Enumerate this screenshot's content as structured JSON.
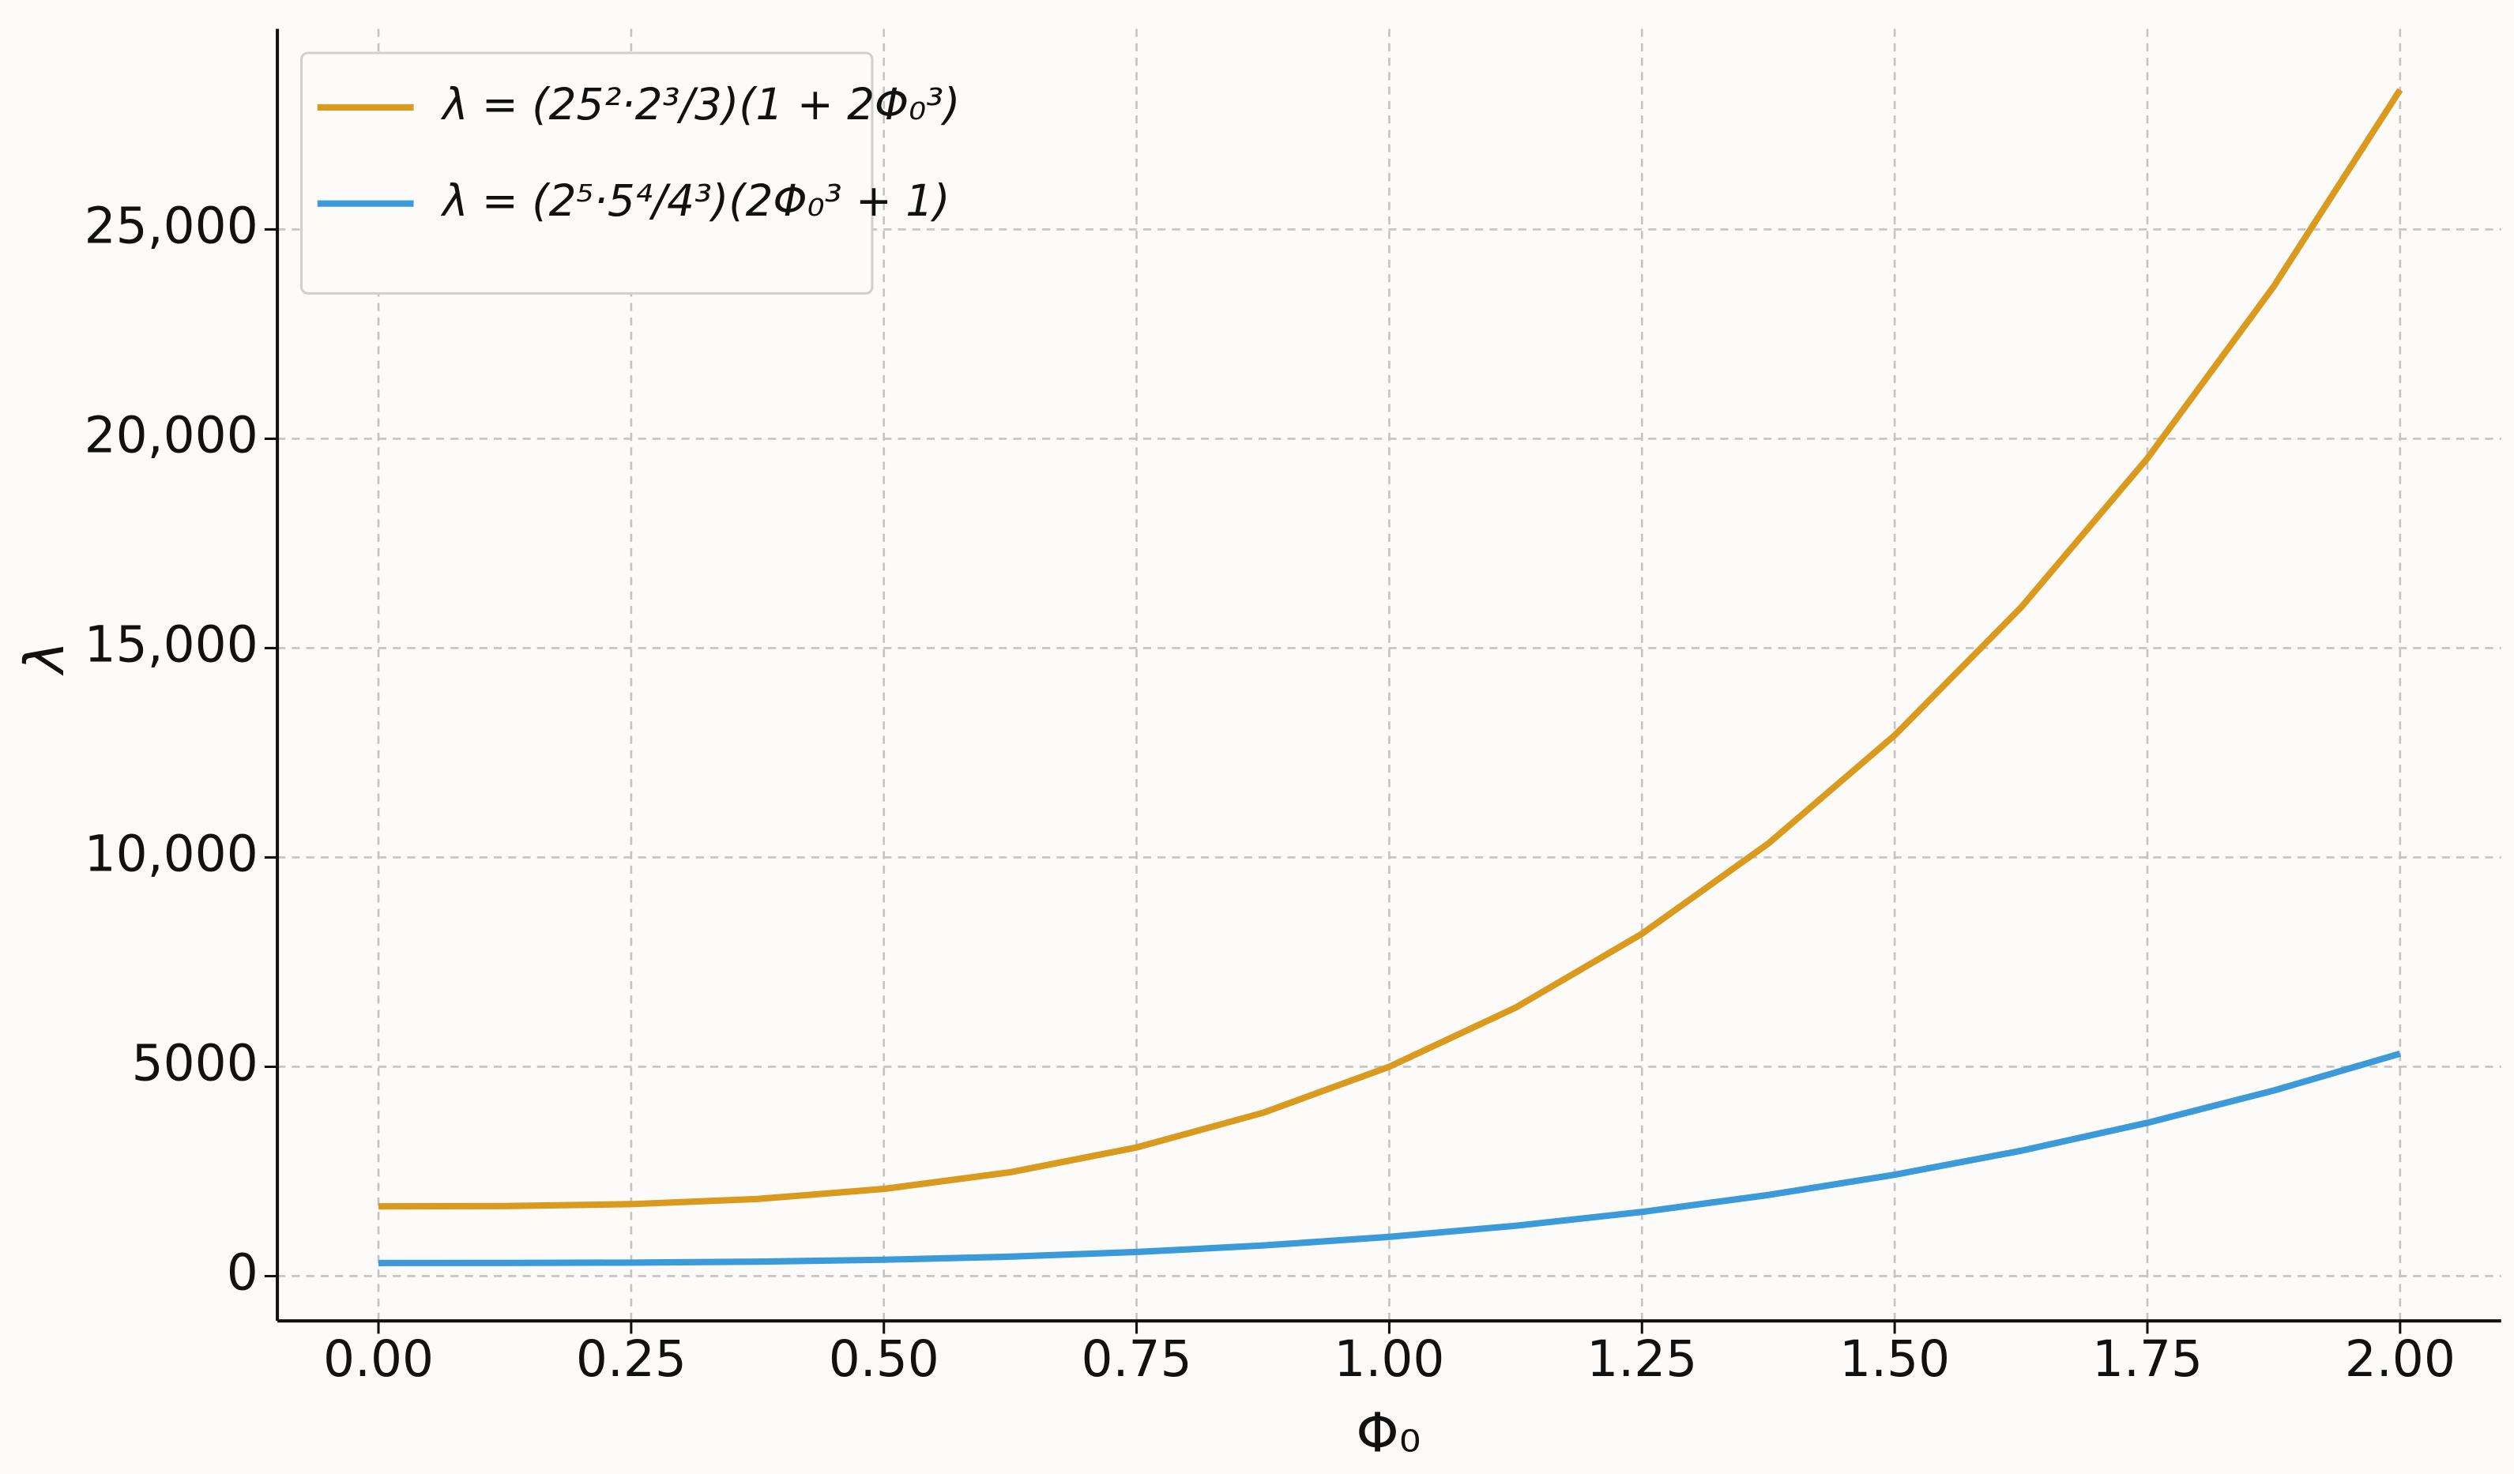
{
  "chart_data": {
    "type": "line",
    "x_label": "Φ₀",
    "y_label": "λ",
    "x": [
      0,
      0.125,
      0.25,
      0.375,
      0.5,
      0.625,
      0.75,
      0.875,
      1,
      1.125,
      1.25,
      1.375,
      1.5,
      1.625,
      1.75,
      1.875,
      2
    ],
    "series": [
      {
        "name": "λ = (25²·2³/3)(1 + 2Φ₀³)",
        "color": "#d99a1e",
        "values": [
          1667,
          1673,
          1719,
          1842,
          2083,
          2481,
          3073,
          3900,
          5000,
          6413,
          8177,
          10332,
          12917,
          15970,
          19531,
          23639,
          28333
        ]
      },
      {
        "name": "λ = (2⁵·5⁴/4³)(2Φ₀³ + 1)",
        "color": "#3b9ad9",
        "values": [
          313,
          314,
          322,
          346,
          391,
          465,
          576,
          731,
          938,
          1202,
          1533,
          1937,
          2422,
          2994,
          3662,
          4432,
          5313
        ]
      }
    ],
    "xlim": [
      -0.1,
      2.1
    ],
    "ylim": [
      -1070,
      29790
    ],
    "xticks": [
      {
        "value": 0,
        "label": "0.00"
      },
      {
        "value": 0.25,
        "label": "0.25"
      },
      {
        "value": 0.5,
        "label": "0.50"
      },
      {
        "value": 0.75,
        "label": "0.75"
      },
      {
        "value": 1,
        "label": "1.00"
      },
      {
        "value": 1.25,
        "label": "1.25"
      },
      {
        "value": 1.5,
        "label": "1.50"
      },
      {
        "value": 1.75,
        "label": "1.75"
      },
      {
        "value": 2,
        "label": "2.00"
      }
    ],
    "yticks": [
      0,
      5000,
      {
        "value": 10000,
        "label": "10,000"
      },
      {
        "value": 15000,
        "label": "15,000"
      },
      {
        "value": 20000,
        "label": "20,000"
      },
      {
        "value": 25000,
        "label": "25,000"
      }
    ],
    "grid": true,
    "legend": "upper left"
  }
}
